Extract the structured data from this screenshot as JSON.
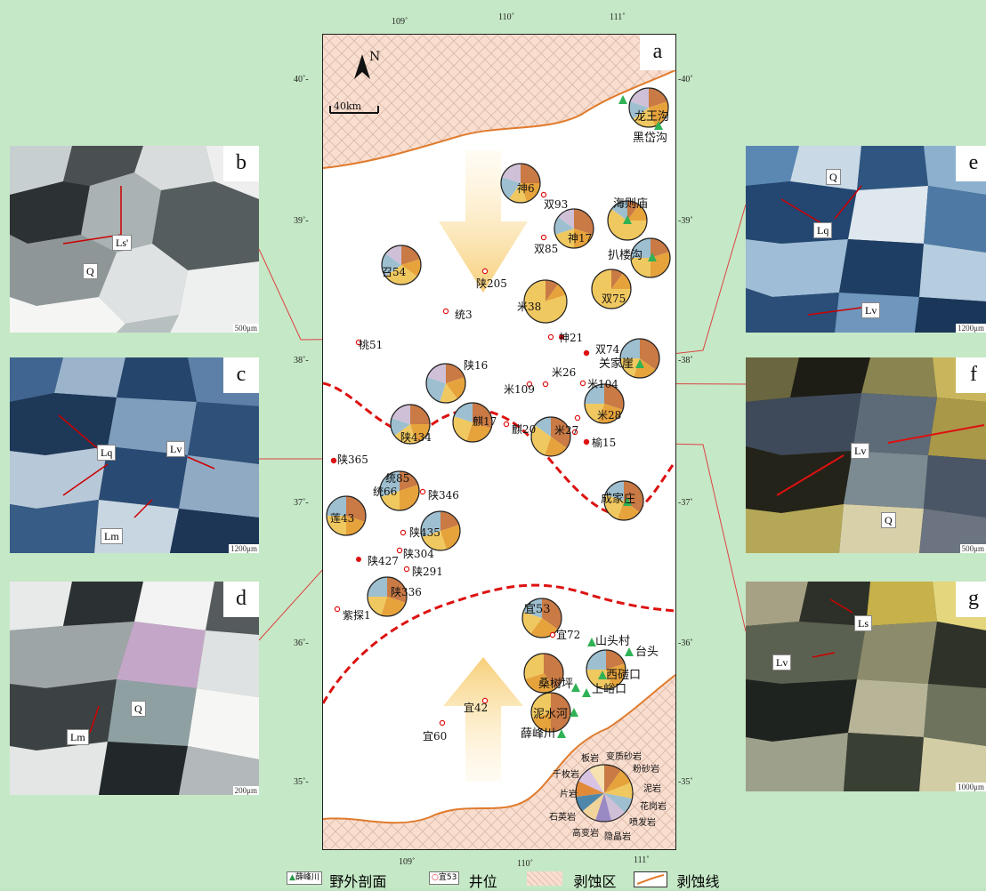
{
  "panel_letters": {
    "a": "a",
    "b": "b",
    "c": "c",
    "d": "d",
    "e": "e",
    "f": "f",
    "g": "g"
  },
  "photos": {
    "b": {
      "scale": "500μm",
      "labels": [
        "Ls'",
        "Q"
      ]
    },
    "c": {
      "scale": "1200μm",
      "labels": [
        "Lq",
        "Lv",
        "Lm"
      ]
    },
    "d": {
      "scale": "200μm",
      "labels": [
        "Q",
        "Lm"
      ]
    },
    "e": {
      "scale": "1200μm",
      "labels": [
        "Q",
        "Lq",
        "Lv"
      ]
    },
    "f": {
      "scale": "500μm",
      "labels": [
        "Lv",
        "Q"
      ]
    },
    "g": {
      "scale": "1000μm",
      "labels": [
        "Ls",
        "Lv"
      ]
    }
  },
  "map": {
    "north": "N",
    "scalebar": "40km",
    "lon_top": [
      "109˚",
      "110˚",
      "111˚"
    ],
    "lon_bottom": [
      "109˚",
      "110˚",
      "111˚"
    ],
    "lat_left": [
      "40˚-",
      "39˚-",
      "38˚-",
      "37˚-",
      "36˚-",
      "35˚-"
    ],
    "lat_right": [
      "-40˚",
      "-39˚",
      "-38˚",
      "-37˚",
      "-36˚",
      "-35˚"
    ],
    "wells": [
      "神6",
      "双93",
      "神17",
      "双85",
      "陕205",
      "统3",
      "米38",
      "双75",
      "神21",
      "双74",
      "米26",
      "米109",
      "米104",
      "米28",
      "麒20",
      "米27",
      "榆15",
      "陕365",
      "统85",
      "统66",
      "陕346",
      "陕435",
      "陕427",
      "陕304",
      "陕291",
      "紫探1",
      "宜72",
      "宜60",
      "宜42"
    ],
    "pie_labels": [
      "龙王沟",
      "海则庙",
      "扒楼沟",
      "关家崖",
      "成家庄",
      "宜53",
      "桑树坪",
      "泥水河",
      "西磑口",
      "台头",
      "山头村",
      "上峪口",
      "薛峰川",
      "黑岱沟",
      "召54",
      "陕16",
      "麒17",
      "陕434",
      "莲43",
      "陕336",
      "桃51"
    ],
    "rock_legend": [
      "板岩",
      "变质砂岩",
      "粉砂岩",
      "千枚岩",
      "泥岩",
      "片岩",
      "花岗岩",
      "石英岩",
      "喷发岩",
      "高变岩",
      "隐晶岩"
    ]
  },
  "legend": {
    "outcrop_sample": "薛峰川",
    "outcrop": "野外剖面",
    "well_sample": "宜53",
    "well": "井位",
    "erosion_area": "剥蚀区",
    "erosion_line": "剥蚀线"
  },
  "colors": {
    "slate": "#c97a45",
    "metasand": "#e6a33c",
    "siltstone": "#f0c860",
    "mudstone": "#9dbfd0",
    "granite": "#cfc0d8",
    "quartzite": "#9a8ac4",
    "phyllite": "#f1d49a",
    "blue": "#4f87ab",
    "red": "#d11"
  }
}
